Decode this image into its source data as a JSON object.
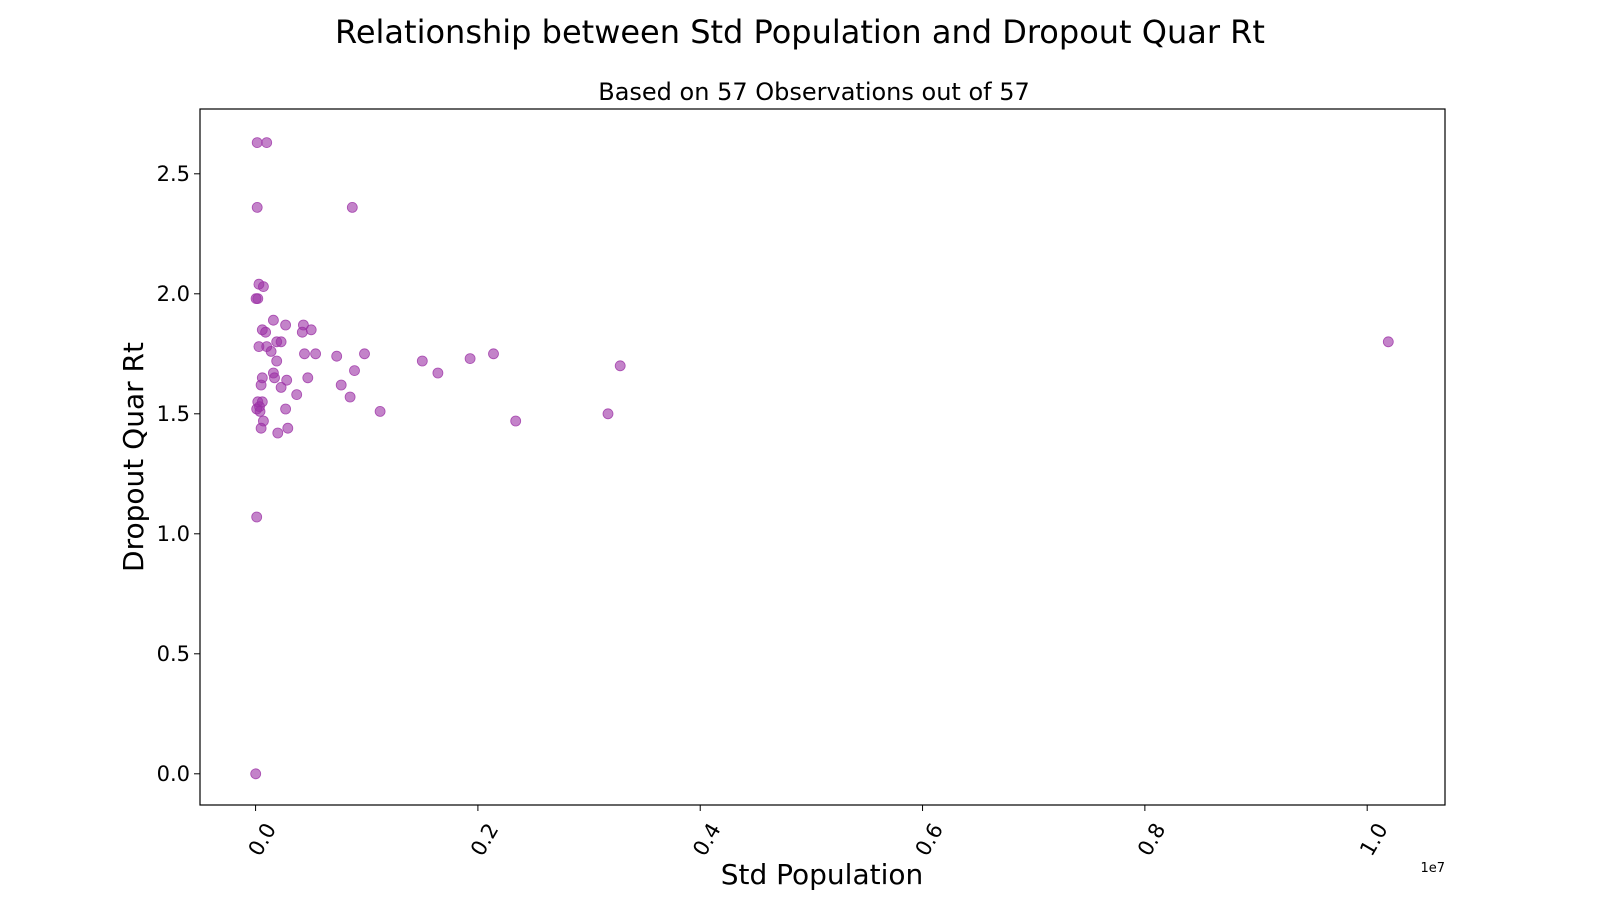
{
  "chart_data": {
    "type": "scatter",
    "title": "Relationship between Std Population and Dropout Quar Rt",
    "subtitle": "Based on 57 Observations out of 57",
    "xlabel": "Std Population",
    "ylabel": "Dropout Quar Rt",
    "x_offset_label": "1e7",
    "x_scale": 10000000,
    "xlim": [
      -500000,
      10700000
    ],
    "ylim": [
      -0.13,
      2.77
    ],
    "x_ticks": [
      0,
      2000000,
      4000000,
      6000000,
      8000000,
      10000000
    ],
    "x_tick_labels": [
      "0.0",
      "0.2",
      "0.4",
      "0.6",
      "0.8",
      "1.0"
    ],
    "y_ticks": [
      0,
      0.5,
      1,
      1.5,
      2,
      2.5
    ],
    "y_tick_labels": [
      "0.0",
      "0.5",
      "1.0",
      "1.5",
      "2.0",
      "2.5"
    ],
    "grid": false,
    "marker_color": "#9b30a5",
    "marker_opacity": 0.6,
    "points": [
      {
        "x": 15000,
        "y": 2.63
      },
      {
        "x": 100000,
        "y": 2.63
      },
      {
        "x": 15000,
        "y": 2.36
      },
      {
        "x": 870000,
        "y": 2.36
      },
      {
        "x": 30000,
        "y": 2.04
      },
      {
        "x": 70000,
        "y": 2.03
      },
      {
        "x": 5000,
        "y": 1.98
      },
      {
        "x": 20000,
        "y": 1.98
      },
      {
        "x": 60000,
        "y": 1.85
      },
      {
        "x": 90000,
        "y": 1.84
      },
      {
        "x": 160000,
        "y": 1.89
      },
      {
        "x": 270000,
        "y": 1.87
      },
      {
        "x": 430000,
        "y": 1.87
      },
      {
        "x": 500000,
        "y": 1.85
      },
      {
        "x": 420000,
        "y": 1.84
      },
      {
        "x": 190000,
        "y": 1.8
      },
      {
        "x": 230000,
        "y": 1.8
      },
      {
        "x": 30000,
        "y": 1.78
      },
      {
        "x": 100000,
        "y": 1.78
      },
      {
        "x": 140000,
        "y": 1.76
      },
      {
        "x": 440000,
        "y": 1.75
      },
      {
        "x": 540000,
        "y": 1.75
      },
      {
        "x": 730000,
        "y": 1.74
      },
      {
        "x": 980000,
        "y": 1.75
      },
      {
        "x": 1930000,
        "y": 1.73
      },
      {
        "x": 2140000,
        "y": 1.75
      },
      {
        "x": 190000,
        "y": 1.72
      },
      {
        "x": 1500000,
        "y": 1.72
      },
      {
        "x": 890000,
        "y": 1.68
      },
      {
        "x": 3280000,
        "y": 1.7
      },
      {
        "x": 160000,
        "y": 1.67
      },
      {
        "x": 1640000,
        "y": 1.67
      },
      {
        "x": 60000,
        "y": 1.65
      },
      {
        "x": 170000,
        "y": 1.65
      },
      {
        "x": 470000,
        "y": 1.65
      },
      {
        "x": 280000,
        "y": 1.64
      },
      {
        "x": 50000,
        "y": 1.62
      },
      {
        "x": 230000,
        "y": 1.61
      },
      {
        "x": 770000,
        "y": 1.62
      },
      {
        "x": 370000,
        "y": 1.58
      },
      {
        "x": 850000,
        "y": 1.57
      },
      {
        "x": 20000,
        "y": 1.55
      },
      {
        "x": 60000,
        "y": 1.55
      },
      {
        "x": 10000,
        "y": 1.52
      },
      {
        "x": 40000,
        "y": 1.51
      },
      {
        "x": 270000,
        "y": 1.52
      },
      {
        "x": 1120000,
        "y": 1.51
      },
      {
        "x": 3170000,
        "y": 1.5
      },
      {
        "x": 70000,
        "y": 1.47
      },
      {
        "x": 2340000,
        "y": 1.47
      },
      {
        "x": 50000,
        "y": 1.44
      },
      {
        "x": 290000,
        "y": 1.44
      },
      {
        "x": 200000,
        "y": 1.42
      },
      {
        "x": 10000,
        "y": 1.07
      },
      {
        "x": 1000,
        "y": 0.0
      },
      {
        "x": 10190000,
        "y": 1.8
      },
      {
        "x": 35000,
        "y": 1.53
      }
    ]
  }
}
